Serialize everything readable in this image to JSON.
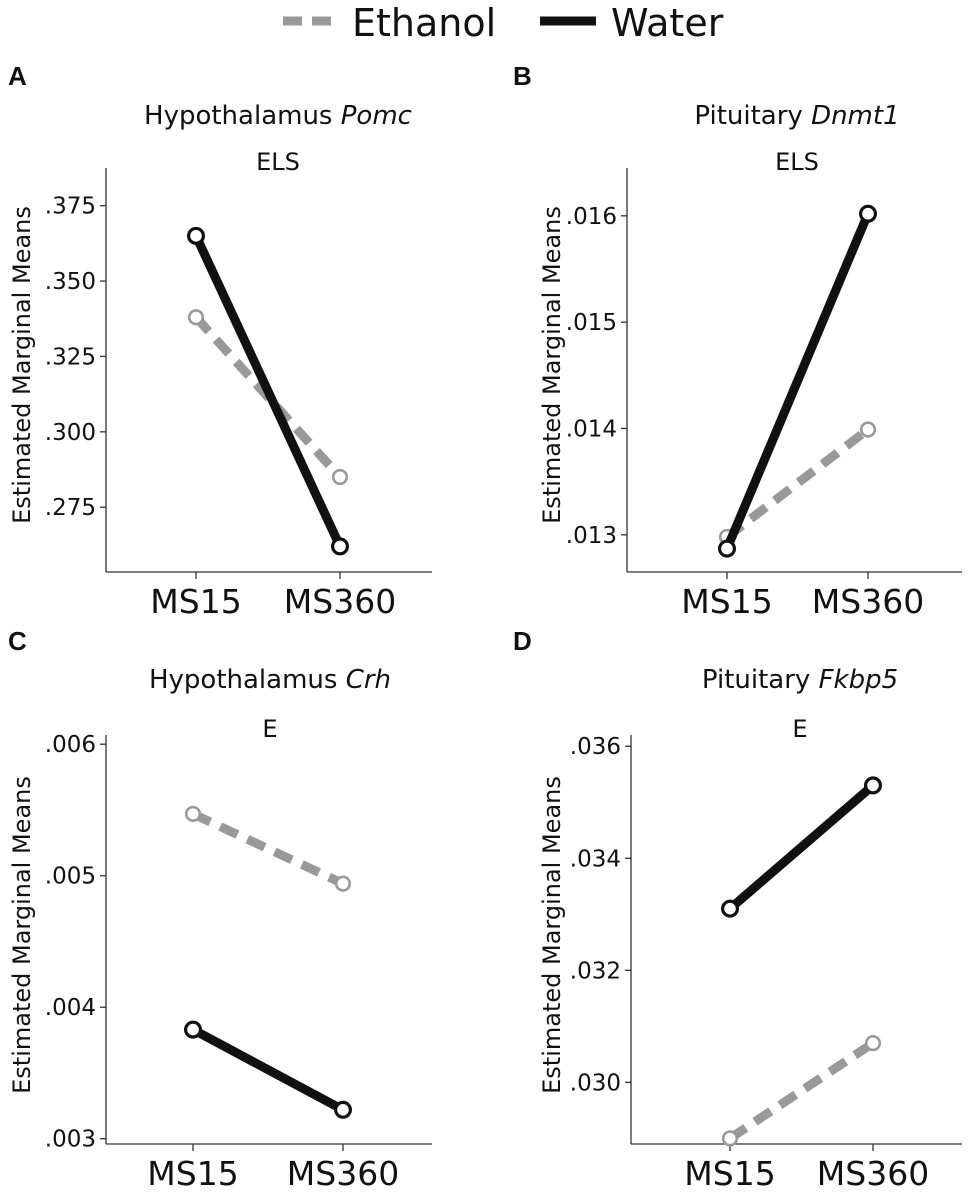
{
  "legend": {
    "items": [
      {
        "label": "Ethanol",
        "color": "#999999",
        "dashed": true
      },
      {
        "label": "Water",
        "color": "#111111",
        "dashed": false
      }
    ]
  },
  "chart_data": [
    {
      "panel": "A",
      "type": "line",
      "title": "Hypothalamus",
      "gene": "Pomc",
      "subtitle": "ELS",
      "ylabel": "Estimated Marginal Means",
      "xlabel": "",
      "categories": [
        "MS15",
        "MS360"
      ],
      "ylim": [
        0.2535,
        0.3875
      ],
      "yticks": [
        0.275,
        0.3,
        0.325,
        0.35,
        0.375
      ],
      "ytick_labels": [
        ".275",
        ".300",
        ".325",
        ".350",
        ".375"
      ],
      "series": [
        {
          "name": "Ethanol",
          "values": [
            0.338,
            0.285
          ]
        },
        {
          "name": "Water",
          "values": [
            0.365,
            0.262
          ]
        }
      ]
    },
    {
      "panel": "B",
      "type": "line",
      "title": "Pituitary",
      "gene": "Dnmt1",
      "subtitle": "ELS",
      "ylabel": "Estimated Marginal Means",
      "xlabel": "",
      "categories": [
        "MS15",
        "MS360"
      ],
      "ylim": [
        0.01265,
        0.01645
      ],
      "yticks": [
        0.013,
        0.014,
        0.015,
        0.016
      ],
      "ytick_labels": [
        ".013",
        ".014",
        ".015",
        ".016"
      ],
      "series": [
        {
          "name": "Ethanol",
          "values": [
            0.01298,
            0.01399
          ]
        },
        {
          "name": "Water",
          "values": [
            0.01287,
            0.01602
          ]
        }
      ]
    },
    {
      "panel": "C",
      "type": "line",
      "title": "Hypothalamus",
      "gene": "Crh",
      "subtitle": "E",
      "ylabel": "Estimated Marginal Means",
      "xlabel": "",
      "categories": [
        "MS15",
        "MS360"
      ],
      "ylim": [
        0.00296,
        0.00607
      ],
      "yticks": [
        0.003,
        0.004,
        0.005,
        0.006
      ],
      "ytick_labels": [
        ".003",
        ".004",
        ".005",
        ".006"
      ],
      "series": [
        {
          "name": "Ethanol",
          "values": [
            0.00547,
            0.00494
          ]
        },
        {
          "name": "Water",
          "values": [
            0.00383,
            0.00322
          ]
        }
      ]
    },
    {
      "panel": "D",
      "type": "line",
      "title": "Pituitary",
      "gene": "Fkbp5",
      "subtitle": "E",
      "ylabel": "Estimated Marginal Means",
      "xlabel": "",
      "categories": [
        "MS15",
        "MS360"
      ],
      "ylim": [
        0.0289,
        0.0362
      ],
      "yticks": [
        0.03,
        0.032,
        0.034,
        0.036
      ],
      "ytick_labels": [
        ".030",
        ".032",
        ".034",
        ".036"
      ],
      "series": [
        {
          "name": "Ethanol",
          "values": [
            0.029,
            0.0307
          ]
        },
        {
          "name": "Water",
          "values": [
            0.0331,
            0.0353
          ]
        }
      ]
    }
  ]
}
